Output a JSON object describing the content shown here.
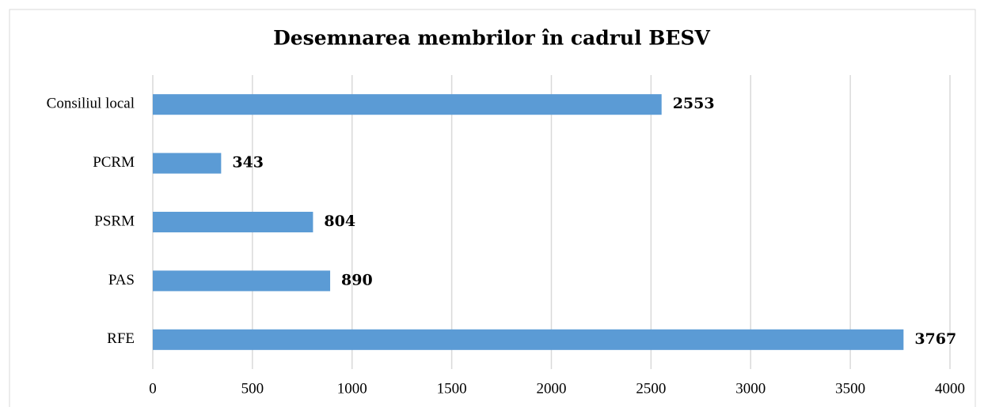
{
  "chart_data": {
    "type": "bar",
    "orientation": "horizontal",
    "title": "Desemnarea membrilor în cadrul BESV",
    "categories": [
      "Consiliul local",
      "PCRM",
      "PSRM",
      "PAS",
      "RFE"
    ],
    "values": [
      2553,
      343,
      804,
      890,
      3767
    ],
    "color": "#5b9bd5",
    "xlim": [
      0,
      4000
    ],
    "xticks": [
      0,
      500,
      1000,
      1500,
      2000,
      2500,
      3000,
      3500,
      4000
    ],
    "grid": true
  }
}
